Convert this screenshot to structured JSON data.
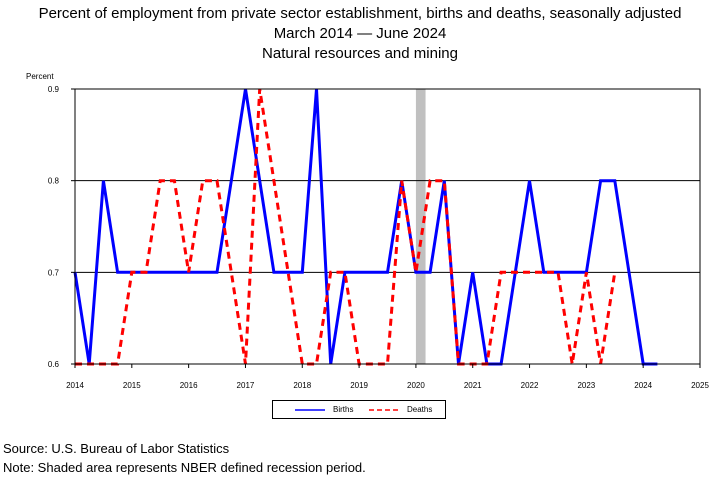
{
  "titles": {
    "line1": "Percent of employment from private sector establishment, births and deaths, seasonally adjusted",
    "line2": "March 2014  — June 2024",
    "line3": "Natural resources and mining"
  },
  "footer": {
    "source": "Source: U.S. Bureau of Labor Statistics",
    "note": "Note: Shaded area represents NBER defined recession period."
  },
  "chart_data": {
    "type": "line",
    "title": "Percent of employment from private sector establishment, births and deaths, seasonally adjusted",
    "ylabel": "Percent",
    "xlabel": "",
    "ylim": [
      0.6,
      0.9
    ],
    "xlim": [
      2014.0,
      2025.0
    ],
    "y_ticks": [
      "0.6",
      "0.7",
      "0.8",
      "0.9"
    ],
    "x_ticks": [
      "2014",
      "2015",
      "2016",
      "2017",
      "2018",
      "2019",
      "2020",
      "2021",
      "2022",
      "2023",
      "2024",
      "2025"
    ],
    "grid": "horizontal",
    "legend_position": "bottom",
    "recession": {
      "start": 2020.0,
      "end": 2020.17
    },
    "series": [
      {
        "name": "Births",
        "color": "#0000ff",
        "style": "solid",
        "x": [
          2014.0,
          2014.25,
          2014.5,
          2014.75,
          2015.0,
          2015.25,
          2015.5,
          2015.75,
          2016.0,
          2016.25,
          2016.5,
          2016.75,
          2017.0,
          2017.25,
          2017.5,
          2017.75,
          2018.0,
          2018.25,
          2018.5,
          2018.75,
          2019.0,
          2019.25,
          2019.5,
          2019.75,
          2020.0,
          2020.25,
          2020.5,
          2020.75,
          2021.0,
          2021.25,
          2021.5,
          2021.75,
          2022.0,
          2022.25,
          2022.5,
          2022.75,
          2023.0,
          2023.25,
          2023.5,
          2023.75,
          2024.0,
          2024.25
        ],
        "values": [
          0.7,
          0.6,
          0.8,
          0.7,
          0.7,
          0.7,
          0.7,
          0.7,
          0.7,
          0.7,
          0.7,
          0.8,
          0.9,
          0.8,
          0.7,
          0.7,
          0.7,
          0.9,
          0.6,
          0.7,
          0.7,
          0.7,
          0.7,
          0.8,
          0.7,
          0.7,
          0.8,
          0.6,
          0.7,
          0.6,
          0.6,
          0.7,
          0.8,
          0.7,
          0.7,
          0.7,
          0.7,
          0.8,
          0.8,
          0.7,
          0.6,
          0.6
        ]
      },
      {
        "name": "Deaths",
        "color": "#ff0000",
        "style": "dashed",
        "x": [
          2014.0,
          2014.25,
          2014.5,
          2014.75,
          2015.0,
          2015.25,
          2015.5,
          2015.75,
          2016.0,
          2016.25,
          2016.5,
          2016.75,
          2017.0,
          2017.25,
          2017.5,
          2017.75,
          2018.0,
          2018.25,
          2018.5,
          2018.75,
          2019.0,
          2019.25,
          2019.5,
          2019.75,
          2020.0,
          2020.25,
          2020.5,
          2020.75,
          2021.0,
          2021.25,
          2021.5,
          2021.75,
          2022.0,
          2022.25,
          2022.5,
          2022.75,
          2023.0,
          2023.25,
          2023.5
        ],
        "values": [
          0.6,
          0.6,
          0.6,
          0.6,
          0.7,
          0.7,
          0.8,
          0.8,
          0.7,
          0.8,
          0.8,
          0.7,
          0.6,
          0.9,
          0.8,
          0.7,
          0.6,
          0.6,
          0.7,
          0.7,
          0.6,
          0.6,
          0.6,
          0.8,
          0.7,
          0.8,
          0.8,
          0.6,
          0.6,
          0.6,
          0.7,
          0.7,
          0.7,
          0.7,
          0.7,
          0.6,
          0.7,
          0.6,
          0.7
        ]
      }
    ]
  }
}
